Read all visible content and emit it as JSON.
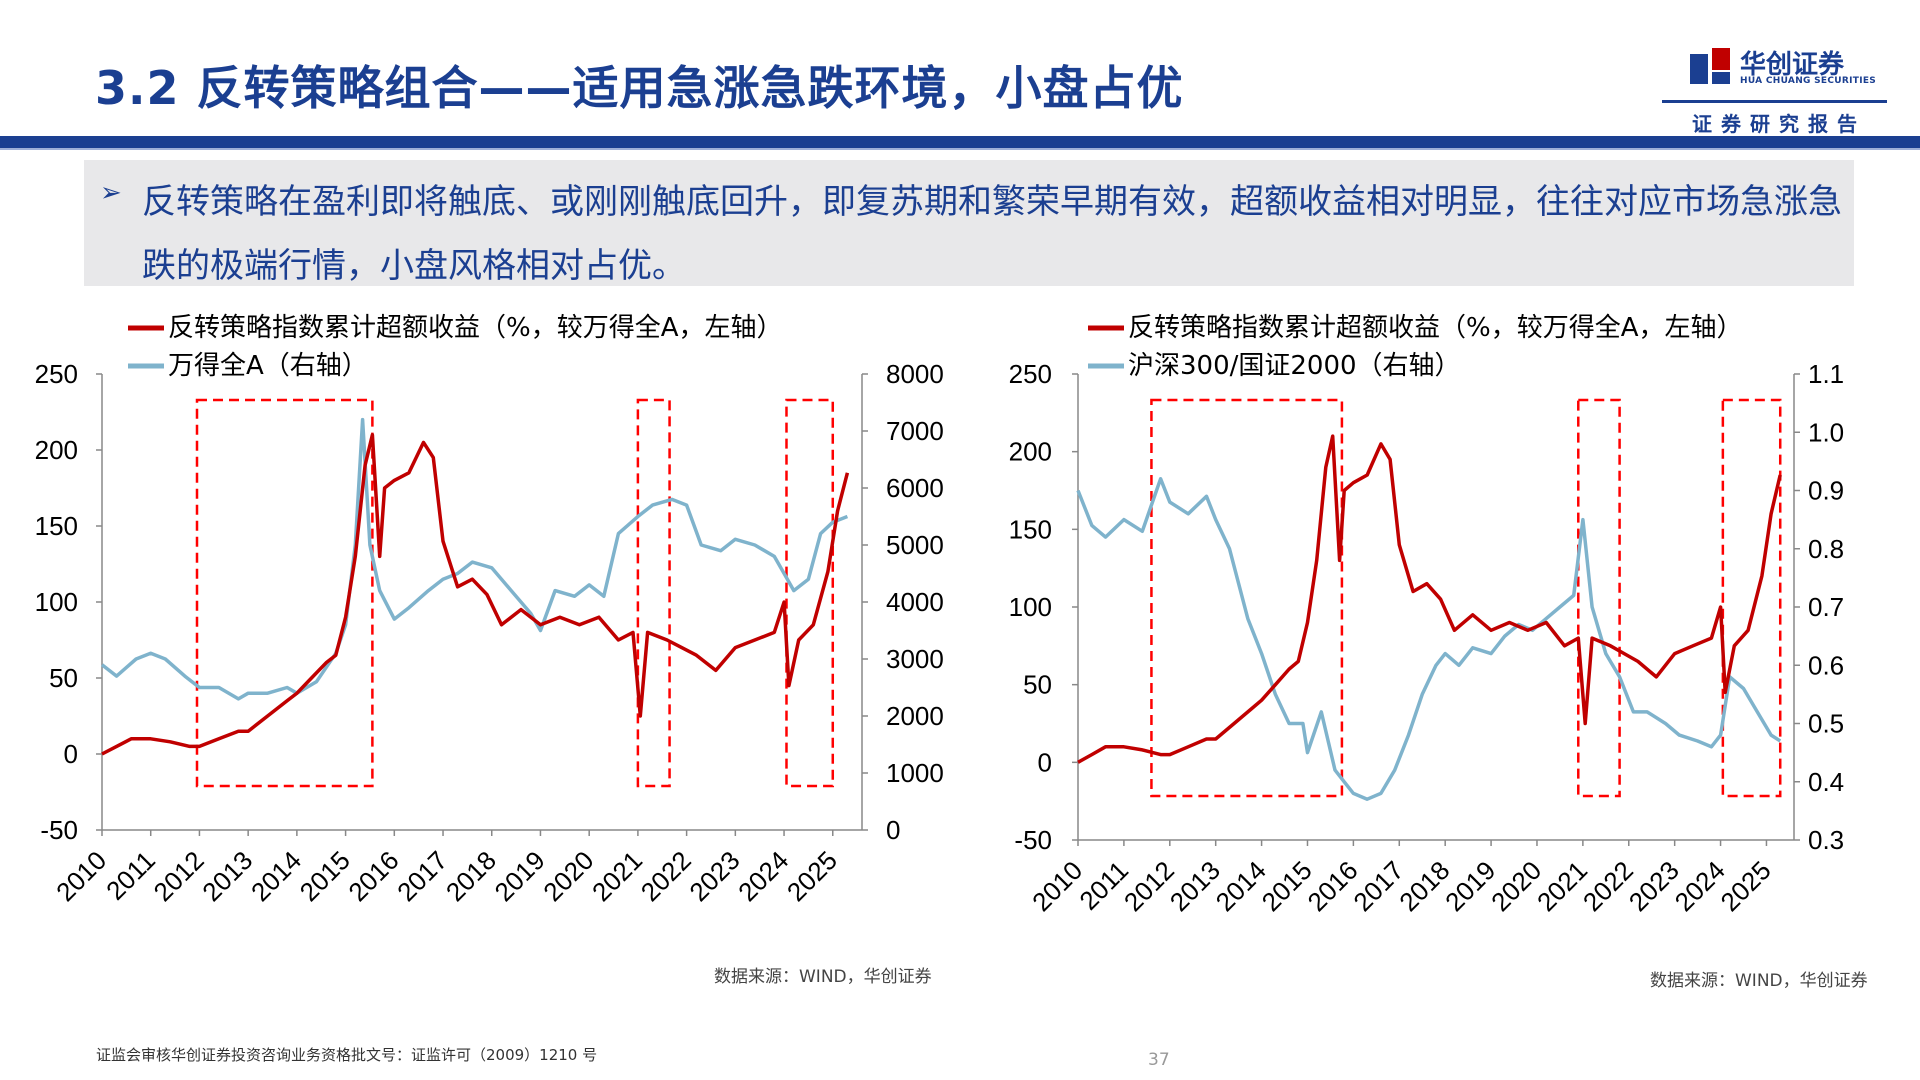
{
  "header": {
    "title": "3.2 反转策略组合——适用急涨急跌环境，小盘占优",
    "logo_cn": "华创证券",
    "logo_en": "HUA CHUANG SECURITIES",
    "report_type": "证券研究报告"
  },
  "summary": {
    "bullet": "➢",
    "text": "反转策略在盈利即将触底、或刚刚触底回升，即复苏期和繁荣早期有效，超额收益相对明显，往往对应市场急涨急跌的极端行情，小盘风格相对占优。"
  },
  "colors": {
    "brand": "#1b3f91",
    "red_series": "#c00000",
    "blue_series": "#7fb3cc",
    "highlight_box": "#ff0000"
  },
  "chart_data": [
    {
      "type": "line",
      "x_ticks": [
        "2010",
        "2011",
        "2012",
        "2013",
        "2014",
        "2015",
        "2016",
        "2017",
        "2018",
        "2019",
        "2020",
        "2021",
        "2022",
        "2023",
        "2024",
        "2025"
      ],
      "xlim": [
        2010,
        2025.6
      ],
      "left_axis": {
        "ylim": [
          -50,
          250
        ],
        "ticks": [
          -50,
          0,
          50,
          100,
          150,
          200,
          250
        ]
      },
      "right_axis": {
        "ylim": [
          0,
          8000
        ],
        "ticks": [
          0,
          1000,
          2000,
          3000,
          4000,
          5000,
          6000,
          7000,
          8000
        ]
      },
      "legend_placement": "top-left",
      "series": [
        {
          "name": "反转策略指数累计超额收益（%，较万得全A，左轴）",
          "axis": "left",
          "color": "#c00000",
          "points": [
            [
              2010.0,
              0
            ],
            [
              2010.3,
              5
            ],
            [
              2010.6,
              10
            ],
            [
              2011.0,
              10
            ],
            [
              2011.4,
              8
            ],
            [
              2011.8,
              5
            ],
            [
              2012.0,
              5
            ],
            [
              2012.4,
              10
            ],
            [
              2012.8,
              15
            ],
            [
              2013.0,
              15
            ],
            [
              2013.4,
              25
            ],
            [
              2013.8,
              35
            ],
            [
              2014.0,
              40
            ],
            [
              2014.3,
              50
            ],
            [
              2014.6,
              60
            ],
            [
              2014.8,
              65
            ],
            [
              2015.0,
              90
            ],
            [
              2015.2,
              130
            ],
            [
              2015.4,
              190
            ],
            [
              2015.55,
              210
            ],
            [
              2015.7,
              130
            ],
            [
              2015.8,
              175
            ],
            [
              2016.0,
              180
            ],
            [
              2016.3,
              185
            ],
            [
              2016.6,
              205
            ],
            [
              2016.8,
              195
            ],
            [
              2017.0,
              140
            ],
            [
              2017.3,
              110
            ],
            [
              2017.6,
              115
            ],
            [
              2017.9,
              105
            ],
            [
              2018.2,
              85
            ],
            [
              2018.6,
              95
            ],
            [
              2019.0,
              85
            ],
            [
              2019.4,
              90
            ],
            [
              2019.8,
              85
            ],
            [
              2020.2,
              90
            ],
            [
              2020.6,
              75
            ],
            [
              2020.9,
              80
            ],
            [
              2021.05,
              25
            ],
            [
              2021.2,
              80
            ],
            [
              2021.6,
              75
            ],
            [
              2021.9,
              70
            ],
            [
              2022.2,
              65
            ],
            [
              2022.6,
              55
            ],
            [
              2023.0,
              70
            ],
            [
              2023.4,
              75
            ],
            [
              2023.8,
              80
            ],
            [
              2024.0,
              100
            ],
            [
              2024.1,
              45
            ],
            [
              2024.3,
              75
            ],
            [
              2024.6,
              85
            ],
            [
              2024.9,
              120
            ],
            [
              2025.1,
              160
            ],
            [
              2025.3,
              185
            ]
          ]
        },
        {
          "name": "万得全A（右轴）",
          "axis": "right",
          "color": "#7fb3cc",
          "points": [
            [
              2010.0,
              2900
            ],
            [
              2010.3,
              2700
            ],
            [
              2010.7,
              3000
            ],
            [
              2011.0,
              3100
            ],
            [
              2011.3,
              3000
            ],
            [
              2011.7,
              2700
            ],
            [
              2012.0,
              2500
            ],
            [
              2012.4,
              2500
            ],
            [
              2012.8,
              2300
            ],
            [
              2013.0,
              2400
            ],
            [
              2013.4,
              2400
            ],
            [
              2013.8,
              2500
            ],
            [
              2014.0,
              2400
            ],
            [
              2014.4,
              2600
            ],
            [
              2014.8,
              3100
            ],
            [
              2015.0,
              3600
            ],
            [
              2015.2,
              5000
            ],
            [
              2015.35,
              7200
            ],
            [
              2015.5,
              5000
            ],
            [
              2015.7,
              4200
            ],
            [
              2016.0,
              3700
            ],
            [
              2016.3,
              3900
            ],
            [
              2016.7,
              4200
            ],
            [
              2017.0,
              4400
            ],
            [
              2017.3,
              4500
            ],
            [
              2017.6,
              4700
            ],
            [
              2018.0,
              4600
            ],
            [
              2018.4,
              4200
            ],
            [
              2018.8,
              3800
            ],
            [
              2019.0,
              3500
            ],
            [
              2019.3,
              4200
            ],
            [
              2019.7,
              4100
            ],
            [
              2020.0,
              4300
            ],
            [
              2020.3,
              4100
            ],
            [
              2020.6,
              5200
            ],
            [
              2021.0,
              5500
            ],
            [
              2021.3,
              5700
            ],
            [
              2021.7,
              5800
            ],
            [
              2022.0,
              5700
            ],
            [
              2022.3,
              5000
            ],
            [
              2022.7,
              4900
            ],
            [
              2023.0,
              5100
            ],
            [
              2023.4,
              5000
            ],
            [
              2023.8,
              4800
            ],
            [
              2024.0,
              4500
            ],
            [
              2024.2,
              4200
            ],
            [
              2024.5,
              4400
            ],
            [
              2024.75,
              5200
            ],
            [
              2025.0,
              5400
            ],
            [
              2025.3,
              5500
            ]
          ]
        }
      ],
      "highlight_ranges": [
        [
          2011.95,
          2015.55
        ],
        [
          2021.0,
          2021.65
        ],
        [
          2024.05,
          2025.0
        ]
      ],
      "source": "数据来源：WIND，华创证券"
    },
    {
      "type": "line",
      "x_ticks": [
        "2010",
        "2011",
        "2012",
        "2013",
        "2014",
        "2015",
        "2016",
        "2017",
        "2018",
        "2019",
        "2020",
        "2021",
        "2022",
        "2023",
        "2024",
        "2025"
      ],
      "xlim": [
        2010,
        2025.6
      ],
      "left_axis": {
        "ylim": [
          -50,
          250
        ],
        "ticks": [
          -50,
          0,
          50,
          100,
          150,
          200,
          250
        ]
      },
      "right_axis": {
        "ylim": [
          0.3,
          1.1
        ],
        "ticks": [
          0.3,
          0.4,
          0.5,
          0.6,
          0.7,
          0.8,
          0.9,
          1.0,
          1.1
        ]
      },
      "legend_placement": "top-left",
      "series": [
        {
          "name": "反转策略指数累计超额收益（%，较万得全A，左轴）",
          "axis": "left",
          "color": "#c00000",
          "points": [
            [
              2010.0,
              0
            ],
            [
              2010.3,
              5
            ],
            [
              2010.6,
              10
            ],
            [
              2011.0,
              10
            ],
            [
              2011.4,
              8
            ],
            [
              2011.8,
              5
            ],
            [
              2012.0,
              5
            ],
            [
              2012.4,
              10
            ],
            [
              2012.8,
              15
            ],
            [
              2013.0,
              15
            ],
            [
              2013.4,
              25
            ],
            [
              2013.8,
              35
            ],
            [
              2014.0,
              40
            ],
            [
              2014.3,
              50
            ],
            [
              2014.6,
              60
            ],
            [
              2014.8,
              65
            ],
            [
              2015.0,
              90
            ],
            [
              2015.2,
              130
            ],
            [
              2015.4,
              190
            ],
            [
              2015.55,
              210
            ],
            [
              2015.7,
              130
            ],
            [
              2015.8,
              175
            ],
            [
              2016.0,
              180
            ],
            [
              2016.3,
              185
            ],
            [
              2016.6,
              205
            ],
            [
              2016.8,
              195
            ],
            [
              2017.0,
              140
            ],
            [
              2017.3,
              110
            ],
            [
              2017.6,
              115
            ],
            [
              2017.9,
              105
            ],
            [
              2018.2,
              85
            ],
            [
              2018.6,
              95
            ],
            [
              2019.0,
              85
            ],
            [
              2019.4,
              90
            ],
            [
              2019.8,
              85
            ],
            [
              2020.2,
              90
            ],
            [
              2020.6,
              75
            ],
            [
              2020.9,
              80
            ],
            [
              2021.05,
              25
            ],
            [
              2021.2,
              80
            ],
            [
              2021.6,
              75
            ],
            [
              2021.9,
              70
            ],
            [
              2022.2,
              65
            ],
            [
              2022.6,
              55
            ],
            [
              2023.0,
              70
            ],
            [
              2023.4,
              75
            ],
            [
              2023.8,
              80
            ],
            [
              2024.0,
              100
            ],
            [
              2024.1,
              45
            ],
            [
              2024.3,
              75
            ],
            [
              2024.6,
              85
            ],
            [
              2024.9,
              120
            ],
            [
              2025.1,
              160
            ],
            [
              2025.3,
              185
            ]
          ]
        },
        {
          "name": "沪深300/国证2000（右轴）",
          "axis": "right",
          "color": "#7fb3cc",
          "points": [
            [
              2010.0,
              0.9
            ],
            [
              2010.3,
              0.84
            ],
            [
              2010.6,
              0.82
            ],
            [
              2011.0,
              0.85
            ],
            [
              2011.4,
              0.83
            ],
            [
              2011.8,
              0.92
            ],
            [
              2012.0,
              0.88
            ],
            [
              2012.4,
              0.86
            ],
            [
              2012.8,
              0.89
            ],
            [
              2013.0,
              0.85
            ],
            [
              2013.3,
              0.8
            ],
            [
              2013.7,
              0.68
            ],
            [
              2014.0,
              0.62
            ],
            [
              2014.3,
              0.55
            ],
            [
              2014.6,
              0.5
            ],
            [
              2014.9,
              0.5
            ],
            [
              2015.0,
              0.45
            ],
            [
              2015.3,
              0.52
            ],
            [
              2015.6,
              0.42
            ],
            [
              2015.8,
              0.4
            ],
            [
              2016.0,
              0.38
            ],
            [
              2016.3,
              0.37
            ],
            [
              2016.6,
              0.38
            ],
            [
              2016.9,
              0.42
            ],
            [
              2017.2,
              0.48
            ],
            [
              2017.5,
              0.55
            ],
            [
              2017.8,
              0.6
            ],
            [
              2018.0,
              0.62
            ],
            [
              2018.3,
              0.6
            ],
            [
              2018.6,
              0.63
            ],
            [
              2019.0,
              0.62
            ],
            [
              2019.3,
              0.65
            ],
            [
              2019.6,
              0.67
            ],
            [
              2019.9,
              0.66
            ],
            [
              2020.2,
              0.68
            ],
            [
              2020.5,
              0.7
            ],
            [
              2020.8,
              0.72
            ],
            [
              2021.0,
              0.85
            ],
            [
              2021.2,
              0.7
            ],
            [
              2021.5,
              0.62
            ],
            [
              2021.8,
              0.58
            ],
            [
              2022.1,
              0.52
            ],
            [
              2022.4,
              0.52
            ],
            [
              2022.8,
              0.5
            ],
            [
              2023.1,
              0.48
            ],
            [
              2023.5,
              0.47
            ],
            [
              2023.8,
              0.46
            ],
            [
              2024.0,
              0.48
            ],
            [
              2024.2,
              0.58
            ],
            [
              2024.5,
              0.56
            ],
            [
              2024.8,
              0.52
            ],
            [
              2025.1,
              0.48
            ],
            [
              2025.3,
              0.47
            ]
          ]
        }
      ],
      "highlight_ranges": [
        [
          2011.6,
          2015.75
        ],
        [
          2020.9,
          2021.8
        ],
        [
          2024.05,
          2025.3
        ]
      ],
      "source": "数据来源：WIND，华创证券"
    }
  ],
  "footer": {
    "license": "证监会审核华创证券投资咨询业务资格批文号：证监许可（2009）1210 号",
    "page_number": "37"
  }
}
